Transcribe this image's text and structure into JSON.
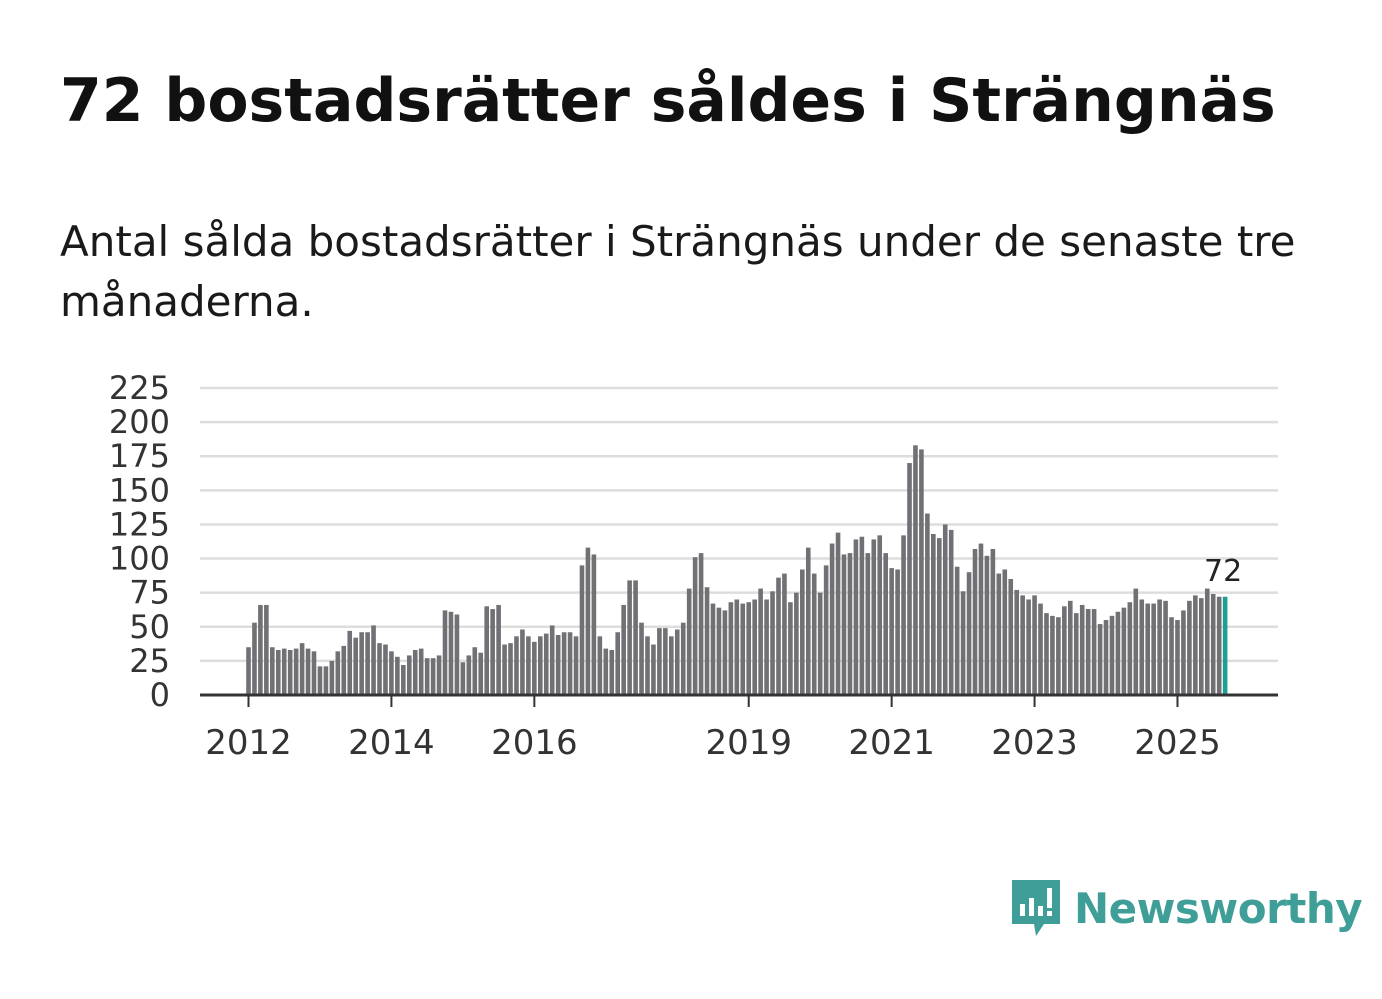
{
  "title": "72 bostadsrätter såldes i Strängnäs",
  "subtitle": "Antal sålda bostadsrätter i Strängnäs under de senaste tre månaderna.",
  "brand": {
    "name": "Newsworthy",
    "color": "#3f9f98",
    "icon": "newsworthy-logo-icon"
  },
  "colors": {
    "bar": "#707075",
    "highlight": "#1f9e96",
    "grid": "#dddddd",
    "axis": "#333333"
  },
  "chart_data": {
    "type": "bar",
    "title": "72 bostadsrätter såldes i Strängnäs",
    "xlabel": "",
    "ylabel": "",
    "ylim": [
      0,
      225
    ],
    "yticks": [
      0,
      25,
      50,
      75,
      100,
      125,
      150,
      175,
      200,
      225
    ],
    "xticks": [
      {
        "label": "2012",
        "index": 0
      },
      {
        "label": "2014",
        "index": 24
      },
      {
        "label": "2016",
        "index": 48
      },
      {
        "label": "2019",
        "index": 84
      },
      {
        "label": "2021",
        "index": 108
      },
      {
        "label": "2023",
        "index": 132
      },
      {
        "label": "2025",
        "index": 156
      }
    ],
    "start": "2012-01",
    "frequency": "monthly",
    "series": [
      {
        "name": "Antal sålda bostadsrätter (rullande tre månader)",
        "values": [
          35,
          53,
          66,
          66,
          35,
          33,
          34,
          33,
          34,
          38,
          34,
          32,
          21,
          21,
          25,
          32,
          36,
          47,
          42,
          46,
          46,
          51,
          38,
          37,
          32,
          28,
          22,
          29,
          33,
          34,
          27,
          27,
          29,
          62,
          61,
          59,
          24,
          29,
          35,
          31,
          65,
          63,
          66,
          37,
          38,
          43,
          48,
          43,
          39,
          43,
          45,
          51,
          44,
          46,
          46,
          43,
          95,
          108,
          103,
          43,
          34,
          33,
          46,
          66,
          84,
          84,
          53,
          43,
          37,
          49,
          49,
          43,
          48,
          53,
          78,
          101,
          104,
          79,
          67,
          64,
          62,
          68,
          70,
          67,
          68,
          70,
          78,
          70,
          76,
          86,
          89,
          68,
          75,
          92,
          108,
          89,
          75,
          95,
          111,
          119,
          103,
          104,
          114,
          116,
          104,
          114,
          117,
          104,
          93,
          92,
          117,
          170,
          183,
          180,
          133,
          118,
          115,
          125,
          121,
          94,
          76,
          90,
          107,
          111,
          102,
          107,
          89,
          92,
          85,
          77,
          73,
          70,
          73,
          67,
          60,
          58,
          57,
          65,
          69,
          60,
          66,
          63,
          63,
          52,
          55,
          58,
          61,
          64,
          68,
          78,
          70,
          67,
          67,
          70,
          69,
          57,
          55,
          62,
          69,
          73,
          71,
          78,
          74,
          72,
          72
        ]
      }
    ],
    "highlight_last": 1,
    "data_labels": [
      {
        "index": 164,
        "text": "72"
      }
    ]
  }
}
